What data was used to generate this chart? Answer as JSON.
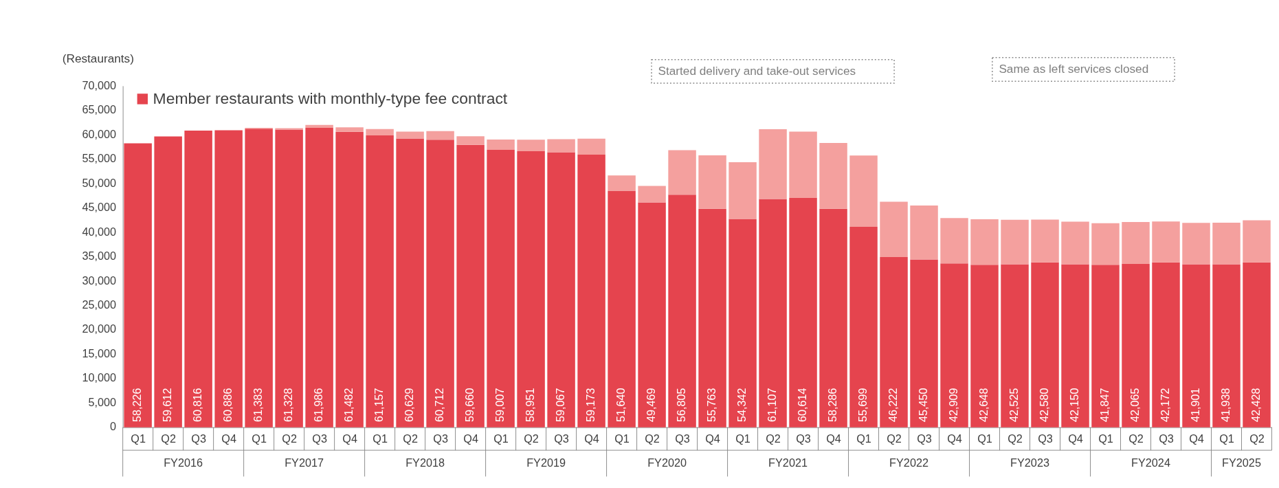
{
  "chart_data": {
    "type": "bar",
    "stacked": true,
    "ylabel": "(Restaurants)",
    "categories": [
      "Q1",
      "Q2",
      "Q3",
      "Q4",
      "Q1",
      "Q2",
      "Q3",
      "Q4",
      "Q1",
      "Q2",
      "Q3",
      "Q4",
      "Q1",
      "Q2",
      "Q3",
      "Q4",
      "Q1",
      "Q2",
      "Q3",
      "Q4",
      "Q1",
      "Q2",
      "Q3",
      "Q4",
      "Q1",
      "Q2",
      "Q3",
      "Q4",
      "Q1",
      "Q2",
      "Q3",
      "Q4",
      "Q1",
      "Q2",
      "Q3",
      "Q4",
      "Q1",
      "Q2"
    ],
    "series": [
      {
        "name": "Member restaurants with monthly-type fee contract",
        "color": "#e5444e",
        "values": [
          58226,
          59612,
          60816,
          60886,
          61200,
          61050,
          61400,
          60560,
          59840,
          59190,
          58970,
          57890,
          56880,
          56590,
          56380,
          55880,
          48500,
          46100,
          47700,
          44800,
          42700,
          46800,
          47000,
          44800,
          41100,
          34900,
          34400,
          33600,
          33300,
          33400,
          33800,
          33400,
          33300,
          33500,
          33800,
          33400,
          33400,
          33800
        ]
      },
      {
        "color": "#f4a09e",
        "values": [
          null,
          null,
          null,
          null,
          183,
          278,
          586,
          922,
          1317,
          1439,
          1742,
          1770,
          2127,
          2361,
          2687,
          3293,
          3140,
          3369,
          9105,
          10963,
          11642,
          14307,
          13614,
          13486,
          14599,
          11322,
          11050,
          9309,
          9348,
          9125,
          8780,
          8750,
          8547,
          8565,
          8372,
          8501,
          8538,
          8628
        ]
      }
    ],
    "totals": [
      "58,226",
      "59,612",
      "60,816",
      "60,886",
      "61,383",
      "61,328",
      "61,986",
      "61,482",
      "61,157",
      "60,629",
      "60,712",
      "59,660",
      "59,007",
      "58,951",
      "59,067",
      "59,173",
      "51,640",
      "49,469",
      "56,805",
      "55,763",
      "54,342",
      "61,107",
      "60,614",
      "58,286",
      "55,699",
      "46,222",
      "45,450",
      "42,909",
      "42,648",
      "42,525",
      "42,580",
      "42,150",
      "41,847",
      "42,065",
      "42,172",
      "41,901",
      "41,938",
      "42,428"
    ],
    "annotations": [
      "Started delivery and take-out services",
      "Same as left services closed",
      "FY2016",
      "FY2017",
      "FY2018",
      "FY2019",
      "FY2020",
      "FY2021",
      "FY2022",
      "FY2023",
      "FY2024",
      "FY2025"
    ],
    "ylim": [
      0,
      70000
    ],
    "yticks": [
      0,
      {
        "value": 5000,
        "label": "5,000"
      },
      {
        "value": 10000,
        "label": "10,000"
      },
      {
        "value": 15000,
        "label": "15,000"
      },
      {
        "value": 20000,
        "label": "20,000"
      },
      {
        "value": 25000,
        "label": "25,000"
      },
      {
        "value": 30000,
        "label": "30,000"
      },
      {
        "value": 35000,
        "label": "35,000"
      },
      {
        "value": 40000,
        "label": "40,000"
      },
      {
        "value": 45000,
        "label": "45,000"
      },
      {
        "value": 50000,
        "label": "50,000"
      },
      {
        "value": 55000,
        "label": "55,000"
      },
      {
        "value": 60000,
        "label": "60,000"
      },
      {
        "value": 65000,
        "label": "65,000"
      },
      {
        "value": 70000,
        "label": "70,000"
      }
    ],
    "legend": "top left",
    "grid": false
  }
}
